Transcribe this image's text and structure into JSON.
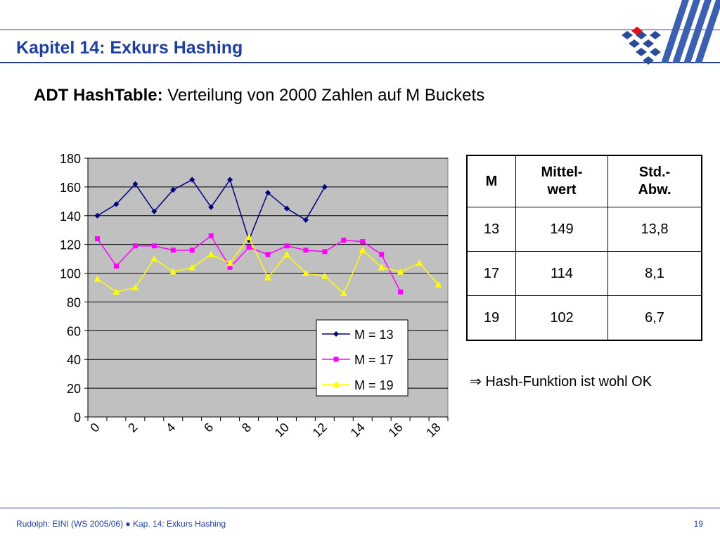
{
  "header": {
    "title": "Kapitel 14: Exkurs Hashing"
  },
  "subtitle": {
    "bold": "ADT HashTable:",
    "rest": " Verteilung von 2000 Zahlen auf M Buckets"
  },
  "colors": {
    "header_blue": "#1f3fa0",
    "plot_bg": "#c0c0c0",
    "series_m13": "#000080",
    "series_m17": "#ff00ff",
    "series_m19": "#ffff00",
    "logo_red": "#e0101a"
  },
  "chart_data": {
    "type": "line",
    "title": "",
    "xlabel": "",
    "ylabel": "",
    "ylim": [
      0,
      180
    ],
    "yticks": [
      0,
      20,
      40,
      60,
      80,
      100,
      120,
      140,
      160,
      180
    ],
    "xticks": [
      0,
      2,
      4,
      6,
      8,
      10,
      12,
      14,
      16,
      18
    ],
    "grid": "horizontal",
    "legend": "bottom-right",
    "series": [
      {
        "name": "M = 13",
        "marker": "diamond",
        "values": [
          140,
          148,
          162,
          143,
          158,
          165,
          146,
          165,
          123,
          156,
          145,
          137,
          160
        ]
      },
      {
        "name": "M = 17",
        "marker": "square",
        "values": [
          124,
          105,
          119,
          119,
          116,
          116,
          126,
          104,
          118,
          113,
          119,
          116,
          115,
          123,
          122,
          113,
          87
        ]
      },
      {
        "name": "M = 19",
        "marker": "triangle",
        "values": [
          96,
          87,
          90,
          110,
          101,
          104,
          113,
          107,
          125,
          97,
          113,
          100,
          98,
          86,
          116,
          104,
          101,
          107,
          92
        ]
      }
    ]
  },
  "table": {
    "headers": [
      [
        "M"
      ],
      [
        "Mittel-",
        "wert"
      ],
      [
        "Std.-",
        "Abw."
      ]
    ],
    "rows": [
      [
        "13",
        "149",
        "13,8"
      ],
      [
        "17",
        "114",
        "8,1"
      ],
      [
        "19",
        "102",
        "6,7"
      ]
    ]
  },
  "conclusion": {
    "symbol": "⇒",
    "text": " Hash-Funktion ist wohl OK"
  },
  "footer": {
    "text": "Rudolph: EINI (WS 2005/06)  ●  Kap. 14: Exkurs Hashing",
    "page": "19"
  }
}
